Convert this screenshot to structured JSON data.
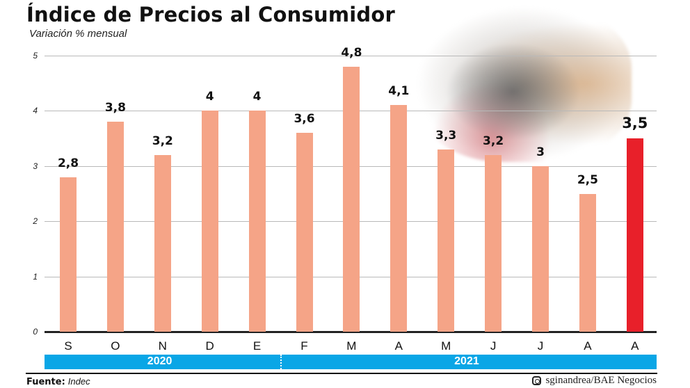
{
  "header": {
    "title": "Índice de Precios al Consumidor",
    "subtitle": "Variación % mensual"
  },
  "colors": {
    "bar": "#f5a487",
    "highlight": "#e8202a",
    "year_band": "#0aa6e6"
  },
  "chart_data": {
    "type": "bar",
    "title": "Índice de Precios al Consumidor",
    "subtitle": "Variación % mensual",
    "xlabel": "",
    "ylabel": "Variación % mensual",
    "ylim": [
      0,
      5
    ],
    "yticks": [
      0,
      1,
      2,
      3,
      4,
      5
    ],
    "grid": true,
    "categories": [
      "S",
      "O",
      "N",
      "D",
      "E",
      "F",
      "M",
      "A",
      "M",
      "J",
      "J",
      "A",
      "A"
    ],
    "values": [
      2.8,
      3.8,
      3.2,
      4,
      4,
      3.6,
      4.8,
      4.1,
      3.3,
      3.2,
      3,
      2.5,
      3.5
    ],
    "value_labels": [
      "2,8",
      "3,8",
      "3,2",
      "4",
      "4",
      "3,6",
      "4,8",
      "4,1",
      "3,3",
      "3,2",
      "3",
      "2,5",
      "3,5"
    ],
    "highlight_index": 12,
    "year_groups": [
      {
        "label": "2020",
        "from": 0,
        "to": 4
      },
      {
        "label": "2021",
        "from": 5,
        "to": 12
      }
    ]
  },
  "footer": {
    "source_label": "Fuente:",
    "source_value": "Indec",
    "credit": "sginandrea/BAE Negocios",
    "credit_icon": "instagram-icon"
  }
}
